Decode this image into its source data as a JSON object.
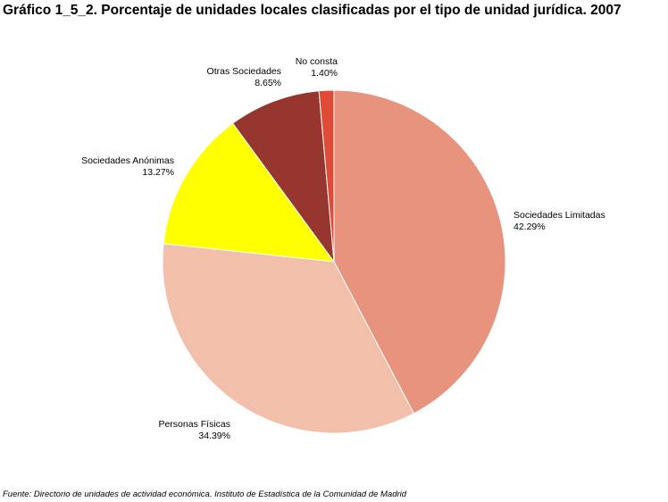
{
  "title": "Gráfico 1_5_2. Porcentaje de unidades locales clasificadas por el tipo de unidad jurídica. 2007",
  "footer": "Fuente: Directorio de unidades de actividad económica. Instituto de Estadística de la Comunidad de Madrid",
  "chart_data": {
    "type": "pie",
    "title": "Gráfico 1_5_2. Porcentaje de unidades locales clasificadas por el tipo de unidad jurídica. 2007",
    "slices": [
      {
        "name": "Sociedades Limitadas",
        "value": 42.29,
        "label": "42.29%",
        "color": "#E8937D"
      },
      {
        "name": "Personas Físicas",
        "value": 34.39,
        "label": "34.39%",
        "color": "#F2BFAA"
      },
      {
        "name": "Sociedades Anónimas",
        "value": 13.27,
        "label": "13.27%",
        "color": "#FFFF00"
      },
      {
        "name": "Otras Sociedades",
        "value": 8.65,
        "label": "8.65%",
        "color": "#96362E"
      },
      {
        "name": "No consta",
        "value": 1.4,
        "label": "1.40%",
        "color": "#E04B38"
      }
    ]
  }
}
